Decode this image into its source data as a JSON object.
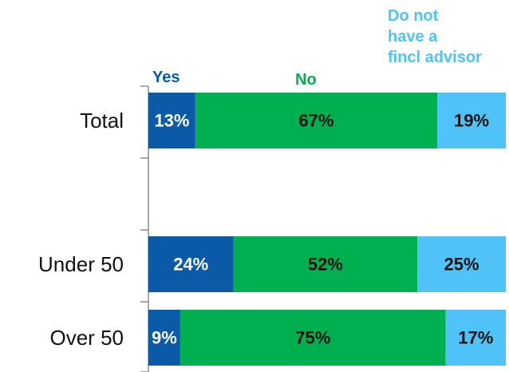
{
  "chart_data": {
    "type": "bar",
    "orientation": "horizontal",
    "stacked": true,
    "normalized_to_100": true,
    "categories": [
      "Total",
      "Under 50",
      "Over 50"
    ],
    "series": [
      {
        "name": "Yes",
        "values": [
          13,
          24,
          9
        ],
        "labels": [
          "13%",
          "24%",
          "9%"
        ],
        "color": "#0a5aa8",
        "label_color": "#ffffff"
      },
      {
        "name": "No",
        "values": [
          67,
          52,
          75
        ],
        "labels": [
          "67%",
          "52%",
          "75%"
        ],
        "color": "#00b050",
        "label_color": "#111111"
      },
      {
        "name": "Do not have a fincl advisor",
        "values": [
          19,
          25,
          17
        ],
        "labels": [
          "19%",
          "25%",
          "17%"
        ],
        "color": "#4fc3f7",
        "label_color": "#111111"
      }
    ],
    "legend_lines": [
      [
        "Yes"
      ],
      [
        "No"
      ],
      [
        "Do not",
        "have a",
        "fincl advisor"
      ]
    ],
    "grid": false,
    "legend_position": "top"
  }
}
